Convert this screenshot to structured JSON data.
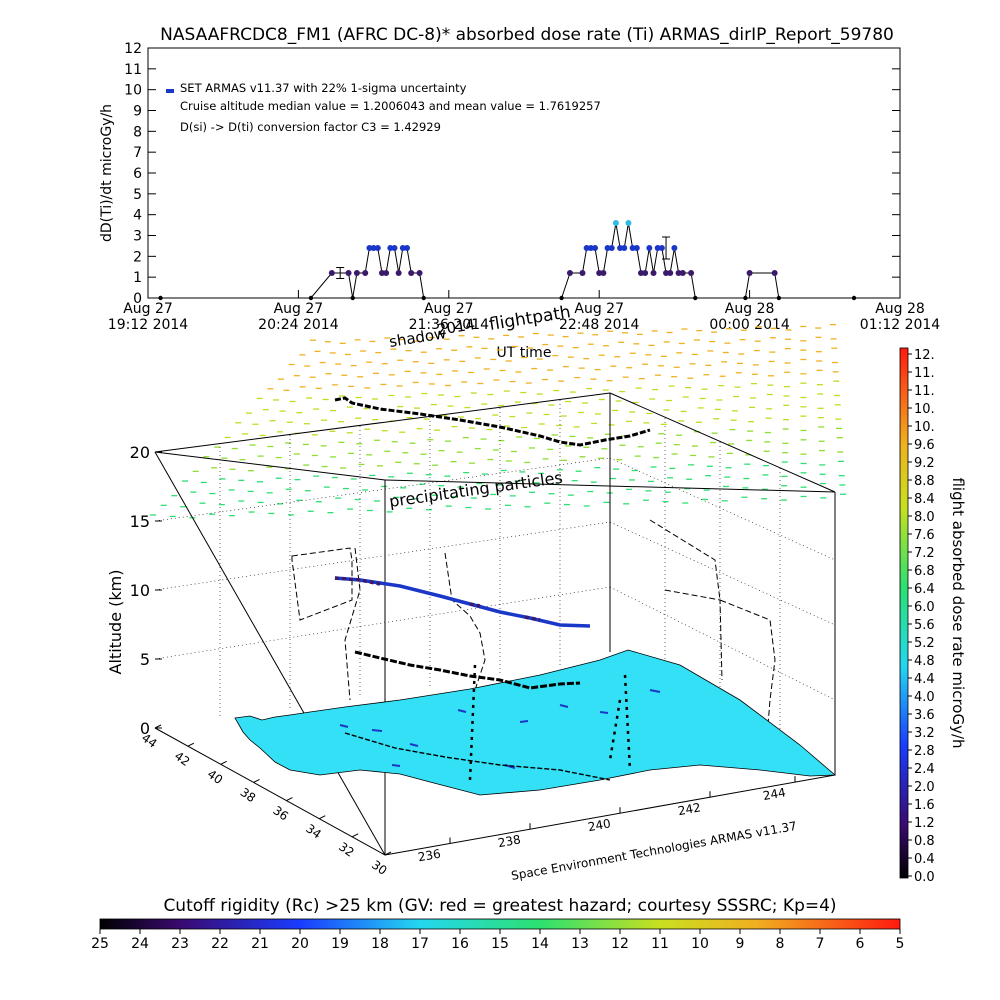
{
  "colors": {
    "ground": "#33e0f5",
    "dose_blue": "#1a37c8",
    "dose_dark": "#3b1a6b",
    "dose_cyan": "#33b8e8",
    "flight_black": "#000000"
  },
  "chart_data": [
    {
      "type": "line",
      "title": "NASAAFRCDC8_FM1 (AFRC DC-8)* absorbed dose rate (Ti) ARMAS_dirIP_Report_59780",
      "ylabel": "dD(Ti)/dt microGy/h",
      "xlabel": "UT time",
      "ylim": [
        0,
        12
      ],
      "yticks": [
        "0",
        "1",
        "2",
        "3",
        "4",
        "5",
        "6",
        "7",
        "8",
        "9",
        "10",
        "11",
        "12"
      ],
      "xticks": [
        {
          "day": "Aug 27",
          "time": "19:12 2014"
        },
        {
          "day": "Aug 27",
          "time": "20:24 2014"
        },
        {
          "day": "Aug 27",
          "time": "21:36 2014"
        },
        {
          "day": "Aug 27",
          "time": "22:48 2014"
        },
        {
          "day": "Aug 28",
          "time": "00:00 2014"
        },
        {
          "day": "Aug 28",
          "time": "01:12 2014"
        }
      ],
      "legend": [
        "SET ARMAS v11.37 with 22% 1-sigma uncertainty",
        "Cruise altitude median value = 1.2006043 and mean value = 1.7619257",
        "D(si) -> D(ti) conversion factor C3 = 1.42929"
      ],
      "series": [
        {
          "name": "SET ARMAS v11.37 with 22% 1-sigma uncertainty",
          "points": [
            [
              "19:18",
              0
            ],
            [
              "20:30",
              0
            ],
            [
              "20:40",
              1.2
            ],
            [
              "20:48",
              1.2
            ],
            [
              "20:50",
              0
            ],
            [
              "20:52",
              1.2
            ],
            [
              "20:56",
              1.2
            ],
            [
              "20:58",
              2.4
            ],
            [
              "21:00",
              2.4
            ],
            [
              "21:02",
              2.4
            ],
            [
              "21:04",
              1.2
            ],
            [
              "21:06",
              1.2
            ],
            [
              "21:08",
              2.4
            ],
            [
              "21:10",
              2.4
            ],
            [
              "21:12",
              1.2
            ],
            [
              "21:14",
              2.4
            ],
            [
              "21:16",
              2.4
            ],
            [
              "21:18",
              1.2
            ],
            [
              "21:22",
              1.2
            ],
            [
              "21:24",
              0
            ],
            [
              "22:30",
              0
            ],
            [
              "22:34",
              1.2
            ],
            [
              "22:40",
              1.2
            ],
            [
              "22:42",
              2.4
            ],
            [
              "22:44",
              2.4
            ],
            [
              "22:46",
              2.4
            ],
            [
              "22:48",
              1.2
            ],
            [
              "22:50",
              1.2
            ],
            [
              "22:52",
              2.4
            ],
            [
              "22:54",
              2.4
            ],
            [
              "22:56",
              3.6
            ],
            [
              "22:58",
              2.4
            ],
            [
              "23:00",
              2.4
            ],
            [
              "23:02",
              3.6
            ],
            [
              "23:04",
              2.4
            ],
            [
              "23:06",
              2.4
            ],
            [
              "23:08",
              1.2
            ],
            [
              "23:10",
              1.2
            ],
            [
              "23:12",
              2.4
            ],
            [
              "23:14",
              1.2
            ],
            [
              "23:16",
              2.4
            ],
            [
              "23:18",
              2.4
            ],
            [
              "23:20",
              1.2
            ],
            [
              "23:22",
              1.2
            ],
            [
              "23:24",
              2.4
            ],
            [
              "23:26",
              1.2
            ],
            [
              "23:28",
              1.2
            ],
            [
              "23:32",
              1.2
            ],
            [
              "23:34",
              0
            ],
            [
              "23:58",
              0
            ],
            [
              "24:00",
              1.2
            ],
            [
              "24:12",
              1.2
            ],
            [
              "24:14",
              0
            ],
            [
              "24:50",
              0
            ]
          ]
        }
      ]
    },
    {
      "type": "scatter",
      "title": "",
      "zlabel": "Altitude (km)",
      "zticks": [
        "0",
        "5",
        "10",
        "15",
        "20"
      ],
      "lat_ticks": [
        "44",
        "42",
        "40",
        "38",
        "36",
        "34",
        "32",
        "30"
      ],
      "lon_ticks": [
        "236",
        "238",
        "240",
        "242",
        "244"
      ],
      "annotations": {
        "shadow_1": "shadow",
        "shadow_2": "2014",
        "flightpath": "flightpath",
        "precipitating": "precipitating particles",
        "credit": "Space Environment Technologies ARMAS v11.37"
      },
      "colorbar": {
        "label": "flight absorbed dose rate microGy/h",
        "ticks": [
          "0.0",
          "0.4",
          "0.8",
          "1.2",
          "1.6",
          "2.0",
          "2.4",
          "2.8",
          "3.2",
          "3.6",
          "4.0",
          "4.4",
          "4.8",
          "5.2",
          "5.6",
          "6.0",
          "6.4",
          "6.8",
          "7.2",
          "7.6",
          "8.0",
          "8.4",
          "8.8",
          "9.2",
          "9.6",
          "10.",
          "10.",
          "11.",
          "11.",
          "12."
        ],
        "range": [
          0,
          12
        ]
      }
    },
    {
      "type": "heatmap",
      "title": "Cutoff rigidity (Rc) >25 km (GV: red = greatest hazard; courtesy SSSRC; Kp=4)",
      "ticks": [
        "25",
        "24",
        "23",
        "22",
        "21",
        "20",
        "19",
        "18",
        "17",
        "16",
        "15",
        "14",
        "13",
        "12",
        "11",
        "10",
        "9",
        "8",
        "7",
        "6",
        "5"
      ],
      "range": [
        25,
        5
      ]
    }
  ]
}
